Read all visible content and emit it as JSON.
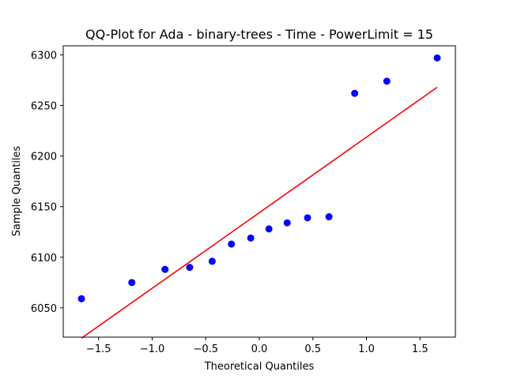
{
  "chart_data": {
    "type": "scatter",
    "title": "QQ-Plot for Ada - binary-trees - Time - PowerLimit = 15",
    "xlabel": "Theoretical Quantiles",
    "ylabel": "Sample Quantiles",
    "xlim": [
      -1.83,
      1.83
    ],
    "ylim": [
      6021,
      6309
    ],
    "x_ticks": [
      -1.5,
      -1.0,
      -0.5,
      0.0,
      0.5,
      1.0,
      1.5
    ],
    "x_tick_labels": [
      "−1.5",
      "−1.0",
      "−0.5",
      "0.0",
      "0.5",
      "1.0",
      "1.5"
    ],
    "y_ticks": [
      6050,
      6100,
      6150,
      6200,
      6250,
      6300
    ],
    "y_tick_labels": [
      "6050",
      "6100",
      "6150",
      "6200",
      "6250",
      "6300"
    ],
    "grid": false,
    "series": [
      {
        "type": "scatter",
        "color": "#0000ff",
        "points": [
          {
            "x": -1.66,
            "y": 6059
          },
          {
            "x": -1.19,
            "y": 6075
          },
          {
            "x": -0.88,
            "y": 6088
          },
          {
            "x": -0.65,
            "y": 6090
          },
          {
            "x": -0.44,
            "y": 6096
          },
          {
            "x": -0.26,
            "y": 6113
          },
          {
            "x": -0.08,
            "y": 6119
          },
          {
            "x": 0.09,
            "y": 6128
          },
          {
            "x": 0.26,
            "y": 6134
          },
          {
            "x": 0.45,
            "y": 6139
          },
          {
            "x": 0.65,
            "y": 6140
          },
          {
            "x": 0.89,
            "y": 6262
          },
          {
            "x": 1.19,
            "y": 6274
          },
          {
            "x": 1.66,
            "y": 6297
          }
        ]
      },
      {
        "type": "line",
        "color": "#ff0000",
        "points": [
          {
            "x": -1.66,
            "y": 6020
          },
          {
            "x": 1.66,
            "y": 6268
          }
        ]
      }
    ]
  }
}
